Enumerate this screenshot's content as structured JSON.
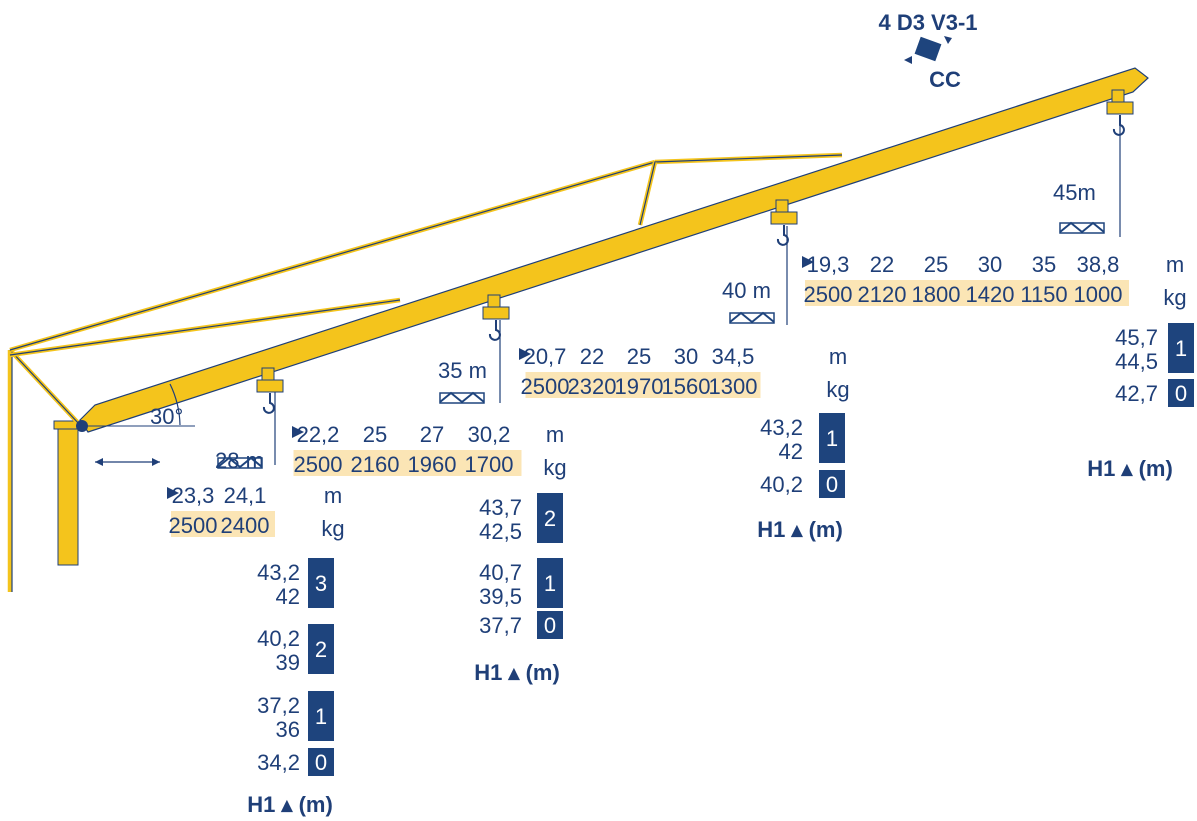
{
  "model": {
    "name": "4 D3 V3-1",
    "mode": "CC"
  },
  "slew_angle": "30°",
  "units": {
    "reach": "m",
    "load": "kg",
    "h1": "H1",
    "h1_unit": "(m)"
  },
  "configs": [
    {
      "jib_length": "28 m",
      "reach": [
        "23,3",
        "24,1"
      ],
      "loads": [
        "2500",
        "2400"
      ],
      "heights": [
        {
          "values": [
            "43,2",
            "42"
          ],
          "sections": "3"
        },
        {
          "values": [
            "40,2",
            "39"
          ],
          "sections": "2"
        },
        {
          "values": [
            "37,2",
            "36"
          ],
          "sections": "1"
        },
        {
          "values": [
            "34,2"
          ],
          "sections": "0"
        }
      ]
    },
    {
      "jib_length": "35 m",
      "reach": [
        "22,2",
        "25",
        "27",
        "30,2"
      ],
      "loads": [
        "2500",
        "2160",
        "1960",
        "1700"
      ],
      "heights": [
        {
          "values": [
            "43,7",
            "42,5"
          ],
          "sections": "2"
        },
        {
          "values": [
            "40,7",
            "39,5"
          ],
          "sections": "1"
        },
        {
          "values": [
            "37,7"
          ],
          "sections": "0"
        }
      ]
    },
    {
      "jib_length": "40 m",
      "reach": [
        "20,7",
        "22",
        "25",
        "30",
        "34,5"
      ],
      "loads": [
        "2500",
        "2320",
        "1970",
        "1560",
        "1300"
      ],
      "heights": [
        {
          "values": [
            "43,2",
            "42"
          ],
          "sections": "1"
        },
        {
          "values": [
            "40,2"
          ],
          "sections": "0"
        }
      ]
    },
    {
      "jib_length": "45m",
      "reach": [
        "19,3",
        "22",
        "25",
        "30",
        "35",
        "38,8"
      ],
      "loads": [
        "2500",
        "2120",
        "1800",
        "1420",
        "1150",
        "1000"
      ],
      "heights": [
        {
          "values": [
            "45,7",
            "44,5"
          ],
          "sections": "1"
        },
        {
          "values": [
            "42,7"
          ],
          "sections": "0"
        }
      ]
    }
  ]
}
